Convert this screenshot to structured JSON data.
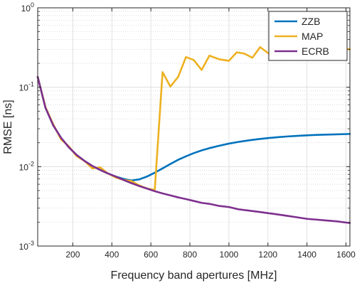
{
  "chart_data": {
    "type": "line",
    "title": "",
    "xlabel": "Frequency band apertures [MHz]",
    "ylabel": "RMSE [ns]",
    "xlim": [
      20,
      1620
    ],
    "ylim": [
      0.001,
      1
    ],
    "yscale": "log",
    "grid": "on",
    "legend_position": "top-right",
    "x_ticks": [
      200,
      400,
      600,
      800,
      1000,
      1200,
      1400,
      1600
    ],
    "x_tick_labels": [
      "200",
      "400",
      "600",
      "800",
      "1000",
      "1200",
      "1400",
      "1600"
    ],
    "y_ticks": [
      0.001,
      0.01,
      0.1,
      1
    ],
    "y_tick_labels": [
      {
        "base": "10",
        "exp": "-3"
      },
      {
        "base": "10",
        "exp": "-2"
      },
      {
        "base": "10",
        "exp": "-1"
      },
      {
        "base": "10",
        "exp": "0"
      }
    ],
    "series": [
      {
        "name": "ZZB",
        "color": "#0072BD",
        "x": [
          20,
          60,
          100,
          140,
          180,
          220,
          260,
          300,
          340,
          380,
          420,
          460,
          500,
          540,
          580,
          620,
          660,
          700,
          740,
          780,
          820,
          860,
          900,
          950,
          1000,
          1050,
          1100,
          1150,
          1200,
          1250,
          1300,
          1350,
          1400,
          1450,
          1500,
          1550,
          1620
        ],
        "y": [
          0.135,
          0.055,
          0.033,
          0.023,
          0.0175,
          0.014,
          0.0118,
          0.0102,
          0.0091,
          0.0082,
          0.0075,
          0.007,
          0.0067,
          0.0069,
          0.0075,
          0.0084,
          0.0095,
          0.0108,
          0.0122,
          0.0135,
          0.0148,
          0.016,
          0.0171,
          0.0183,
          0.0195,
          0.0205,
          0.0214,
          0.0222,
          0.0229,
          0.0235,
          0.024,
          0.0244,
          0.0248,
          0.0251,
          0.0253,
          0.0255,
          0.0258
        ]
      },
      {
        "name": "MAP",
        "color": "#EDB120",
        "x": [
          20,
          60,
          100,
          140,
          180,
          220,
          260,
          300,
          340,
          380,
          420,
          460,
          500,
          540,
          580,
          620,
          660,
          700,
          740,
          780,
          820,
          860,
          900,
          950,
          1000,
          1040,
          1080,
          1120,
          1160,
          1200,
          1240,
          1280,
          1320,
          1360,
          1400,
          1440,
          1480,
          1520,
          1560,
          1600,
          1620
        ],
        "y": [
          0.135,
          0.056,
          0.034,
          0.022,
          0.018,
          0.0135,
          0.0118,
          0.0095,
          0.0098,
          0.0082,
          0.0073,
          0.0068,
          0.0066,
          0.0058,
          0.0053,
          0.0051,
          0.155,
          0.102,
          0.135,
          0.24,
          0.22,
          0.165,
          0.25,
          0.225,
          0.215,
          0.275,
          0.265,
          0.235,
          0.32,
          0.27,
          0.245,
          0.295,
          0.3,
          0.27,
          0.3,
          0.295,
          0.3,
          0.295,
          0.3,
          0.305,
          0.3
        ]
      },
      {
        "name": "ECRB",
        "color": "#7E2F8E",
        "x": [
          20,
          60,
          100,
          140,
          180,
          220,
          260,
          300,
          340,
          380,
          420,
          460,
          500,
          540,
          580,
          620,
          660,
          700,
          740,
          780,
          820,
          860,
          900,
          950,
          1000,
          1050,
          1100,
          1150,
          1200,
          1250,
          1300,
          1350,
          1400,
          1450,
          1500,
          1550,
          1620
        ],
        "y": [
          0.135,
          0.055,
          0.033,
          0.023,
          0.0175,
          0.014,
          0.0118,
          0.0102,
          0.0091,
          0.0082,
          0.0075,
          0.0068,
          0.0062,
          0.0057,
          0.0053,
          0.0049,
          0.0046,
          0.00435,
          0.0041,
          0.0039,
          0.0037,
          0.0035,
          0.0034,
          0.0032,
          0.0031,
          0.0029,
          0.0028,
          0.0027,
          0.0026,
          0.0025,
          0.0024,
          0.0023,
          0.0022,
          0.00215,
          0.0021,
          0.00205,
          0.00195
        ]
      }
    ]
  }
}
